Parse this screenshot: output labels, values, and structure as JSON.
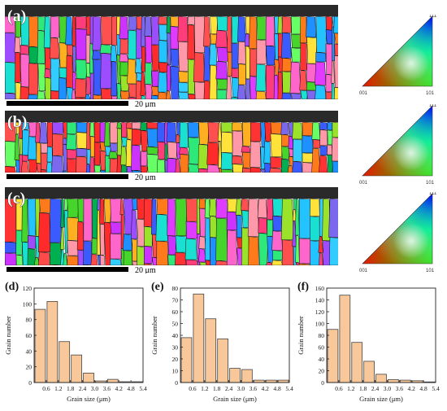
{
  "ebsd_maps": [
    {
      "letter": "(a)",
      "scale_bar": "20 μm",
      "seed": 11,
      "columnar": 1.6
    },
    {
      "letter": "(b)",
      "scale_bar": "20 μm",
      "seed": 29,
      "columnar": 1.2
    },
    {
      "letter": "(c)",
      "scale_bar": "20 μm",
      "seed": 47,
      "columnar": 2.0
    }
  ],
  "ipf_key": {
    "corner_top": "111",
    "corner_left": "001",
    "corner_right": "101"
  },
  "chart_data": [
    {
      "type": "bar",
      "letter": "(d)",
      "xlabel": "Grain size (μm)",
      "ylabel": "Grain number",
      "xlim": [
        0,
        5.4
      ],
      "ylim": [
        0,
        120
      ],
      "xticks": [
        "0.6",
        "1.2",
        "1.8",
        "2.4",
        "3.0",
        "3.6",
        "4.2",
        "4.8",
        "5.4"
      ],
      "yticks": [
        "0",
        "20",
        "40",
        "60",
        "80",
        "100",
        "120"
      ],
      "bin_width": 0.6,
      "bin_centers": [
        0.3,
        0.9,
        1.5,
        2.1,
        2.7,
        3.3,
        3.9,
        4.5,
        5.1
      ],
      "values": [
        93,
        103,
        52,
        35,
        12,
        2,
        4,
        1,
        1
      ],
      "bar_color": "#f8c79a"
    },
    {
      "type": "bar",
      "letter": "(e)",
      "xlabel": "Grain size (μm)",
      "ylabel": "Grain number",
      "xlim": [
        0,
        5.4
      ],
      "ylim": [
        0,
        80
      ],
      "xticks": [
        "0.6",
        "1.2",
        "1.8",
        "2.4",
        "3.0",
        "3.6",
        "4.2",
        "4.8",
        "5.4"
      ],
      "yticks": [
        "0",
        "10",
        "20",
        "30",
        "40",
        "50",
        "60",
        "70",
        "80"
      ],
      "bin_width": 0.6,
      "bin_centers": [
        0.3,
        0.9,
        1.5,
        2.1,
        2.7,
        3.3,
        3.9,
        4.5,
        5.1
      ],
      "values": [
        38,
        75,
        54,
        37,
        12,
        11,
        2,
        2,
        2
      ],
      "bar_color": "#f8c79a"
    },
    {
      "type": "bar",
      "letter": "(f)",
      "xlabel": "Grain size (μm)",
      "ylabel": "Grain number",
      "xlim": [
        0,
        5.4
      ],
      "ylim": [
        0,
        160
      ],
      "xticks": [
        "0.6",
        "1.2",
        "1.8",
        "2.4",
        "3.0",
        "3.6",
        "4.2",
        "4.8",
        "5.4"
      ],
      "yticks": [
        "0",
        "20",
        "40",
        "60",
        "80",
        "100",
        "120",
        "140",
        "160"
      ],
      "bin_width": 0.6,
      "bin_centers": [
        0.3,
        0.9,
        1.5,
        2.1,
        2.7,
        3.3,
        3.9,
        4.5,
        5.1
      ],
      "values": [
        90,
        148,
        68,
        36,
        14,
        5,
        4,
        3,
        1
      ],
      "bar_color": "#f8c79a"
    }
  ]
}
